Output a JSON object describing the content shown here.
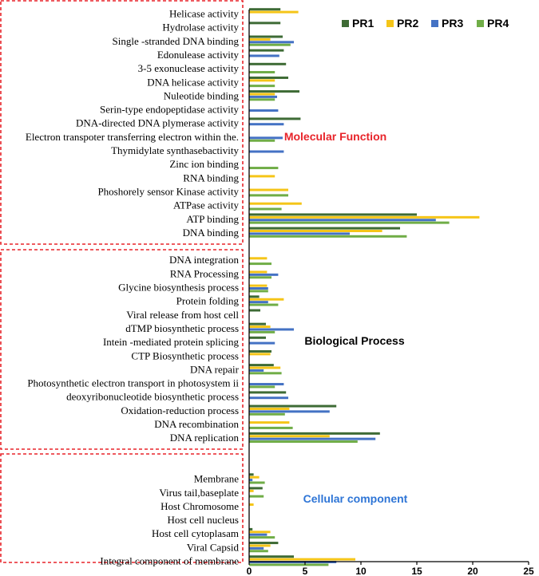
{
  "chart_data": {
    "type": "bar",
    "orientation": "horizontal",
    "xlim": [
      0,
      25
    ],
    "xticks": [
      0,
      5,
      10,
      15,
      20,
      25
    ],
    "legend": {
      "placement": "top-right"
    },
    "series": [
      {
        "name": "PR1",
        "color": "#3e6b35"
      },
      {
        "name": "PR2",
        "color": "#f5c518"
      },
      {
        "name": "PR3",
        "color": "#4472c4"
      },
      {
        "name": "PR4",
        "color": "#70ad47"
      }
    ],
    "groups": [
      {
        "label": "Molecular Function",
        "label_color": "#e8242a",
        "categories": [
          {
            "name": "Helicase activity",
            "values": [
              2.8,
              4.4,
              0,
              0
            ]
          },
          {
            "name": "Hydrolase activity",
            "values": [
              2.8,
              0,
              0,
              0
            ]
          },
          {
            "name": "Single -stranded DNA binding",
            "values": [
              3.0,
              1.9,
              4.0,
              3.7
            ]
          },
          {
            "name": "Edonulease activity",
            "values": [
              3.1,
              0,
              2.7,
              0
            ]
          },
          {
            "name": "3-5 exonuclease activity",
            "values": [
              3.3,
              0,
              0,
              2.3
            ]
          },
          {
            "name": "DNA helicase activity",
            "values": [
              3.5,
              2.3,
              0,
              2.3
            ]
          },
          {
            "name": "Nuleotide  binding",
            "values": [
              4.5,
              2.3,
              2.5,
              2.3
            ]
          },
          {
            "name": "Serin-type endopeptidase activity",
            "values": [
              0,
              0,
              2.6,
              0
            ]
          },
          {
            "name": "DNA-directed DNA plymerase activity",
            "values": [
              4.6,
              0,
              3.1,
              0
            ]
          },
          {
            "name": "Electron transpoter transferring electron within the.",
            "values": [
              0,
              0,
              3.0,
              2.3
            ]
          },
          {
            "name": "Thymidylate synthasebactivity",
            "values": [
              0,
              0,
              3.1,
              0
            ]
          },
          {
            "name": "Zinc ion binding",
            "values": [
              0,
              0,
              0,
              2.6
            ]
          },
          {
            "name": "RNA binding",
            "values": [
              0,
              2.3,
              0,
              0
            ]
          },
          {
            "name": "Phoshorely sensor Kinase activity",
            "values": [
              0,
              3.5,
              0,
              3.5
            ]
          },
          {
            "name": "ATPase activity",
            "values": [
              0,
              4.7,
              0,
              2.9
            ]
          },
          {
            "name": "ATP binding",
            "values": [
              15.0,
              20.6,
              16.7,
              17.9
            ]
          },
          {
            "name": "DNA binding",
            "values": [
              13.5,
              11.9,
              9.0,
              14.1
            ]
          }
        ]
      },
      {
        "label": "Biological Process",
        "label_color": "#000000",
        "categories": [
          {
            "name": "DNA integration",
            "values": [
              0,
              1.6,
              0,
              2.0
            ]
          },
          {
            "name": "RNA Processing",
            "values": [
              0,
              1.6,
              2.6,
              2.0
            ]
          },
          {
            "name": "Glycine biosynthesis process",
            "values": [
              0,
              1.6,
              1.7,
              1.7
            ]
          },
          {
            "name": "Protein folding",
            "values": [
              0.9,
              3.1,
              1.7,
              2.6
            ]
          },
          {
            "name": "Viral release from host cell",
            "values": [
              1.0,
              0,
              0,
              0
            ]
          },
          {
            "name": "dTMP biosynthetic process",
            "values": [
              1.5,
              1.9,
              4.0,
              2.3
            ]
          },
          {
            "name": "Intein -mediated protein splicing",
            "values": [
              1.5,
              0,
              2.3,
              0
            ]
          },
          {
            "name": "CTP Biosynthetic process",
            "values": [
              2.0,
              1.9,
              0,
              0
            ]
          },
          {
            "name": "DNA repair",
            "values": [
              2.2,
              2.8,
              1.3,
              2.9
            ]
          },
          {
            "name": "Photosynthetic electron transport in photosystem ii",
            "values": [
              0,
              0,
              3.1,
              2.3
            ]
          },
          {
            "name": "deoxyribonucleotide biosynthetic process",
            "values": [
              3.3,
              0,
              3.5,
              0
            ]
          },
          {
            "name": "Oxidation-reduction process",
            "values": [
              7.8,
              3.6,
              7.2,
              3.2
            ]
          },
          {
            "name": "DNA recombination",
            "values": [
              0,
              3.6,
              0,
              3.9
            ]
          },
          {
            "name": "DNA replication",
            "values": [
              11.7,
              7.2,
              11.3,
              9.7
            ]
          }
        ]
      },
      {
        "label": "Cellular component",
        "label_color": "#2e75d6",
        "categories": [
          {
            "name": "Membrane",
            "values": [
              0.4,
              0.9,
              0.3,
              1.4
            ]
          },
          {
            "name": "Virus tail,baseplate",
            "values": [
              1.2,
              0.4,
              0,
              1.3
            ]
          },
          {
            "name": "Host Chromosome",
            "values": [
              0,
              0.4,
              0,
              0
            ]
          },
          {
            "name": "Host cell nucleus",
            "values": [
              0,
              0,
              0,
              0
            ]
          },
          {
            "name": "Host cell cytoplasam",
            "values": [
              0.3,
              1.9,
              1.6,
              2.3
            ]
          },
          {
            "name": "Viral Capsid",
            "values": [
              2.6,
              1.9,
              1.3,
              1.7
            ]
          },
          {
            "name": "Integral component of membrane",
            "values": [
              4.0,
              9.5,
              7.8,
              7.1
            ]
          }
        ]
      }
    ]
  }
}
